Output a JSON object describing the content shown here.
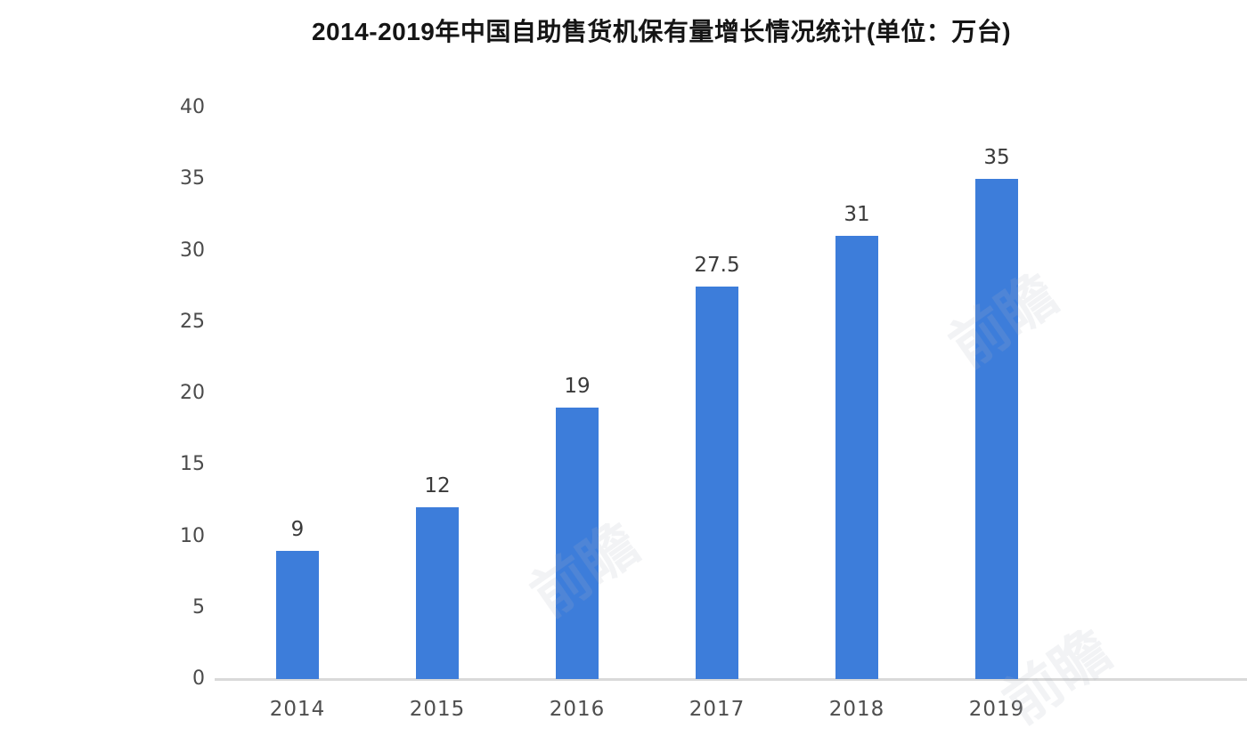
{
  "title": "2014-2019年中国自助售货机保有量增长情况统计(单位：万台)",
  "chart_data": {
    "type": "bar",
    "title": "2014-2019年中国自助售货机保有量增长情况统计(单位：万台)",
    "categories": [
      "2014",
      "2015",
      "2016",
      "2017",
      "2018",
      "2019"
    ],
    "values": [
      9,
      12,
      19,
      27.5,
      31,
      35
    ],
    "value_labels": [
      "9",
      "12",
      "19",
      "27.5",
      "31",
      "35"
    ],
    "xlabel": "",
    "ylabel": "",
    "ylim": [
      0,
      40
    ],
    "yticks": [
      0,
      5,
      10,
      15,
      20,
      25,
      30,
      35,
      40
    ],
    "grid": false,
    "legend": "none",
    "bar_color": "#3d7dda",
    "axis_line_color": "#d9d9d9",
    "tick_label_color": "#4b4b4b",
    "value_label_color": "#3a3a3a",
    "title_color": "#151515"
  },
  "watermark": {
    "text": "前瞻"
  }
}
